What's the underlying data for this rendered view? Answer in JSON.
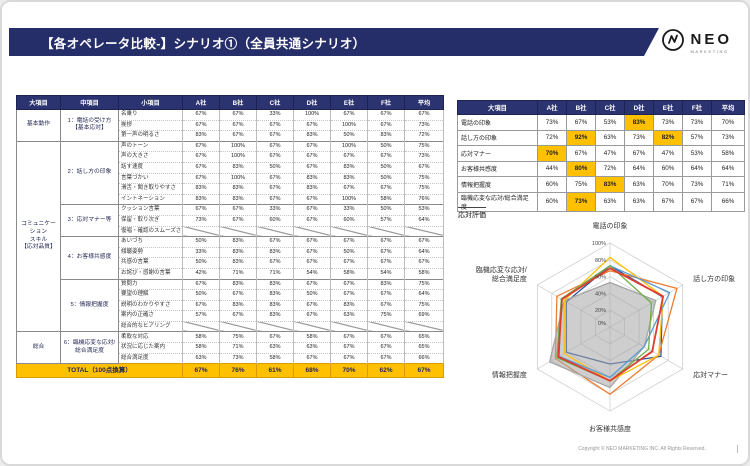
{
  "header": {
    "title": "【各オペレータ比較-】シナリオ①（全員共通シナリオ）"
  },
  "logo": {
    "name": "NEO",
    "sub": "MARKETING",
    "icon": "compass-circle-icon"
  },
  "left_table": {
    "col_headers": [
      "大項目",
      "中項目",
      "小項目",
      "A社",
      "B社",
      "C社",
      "D社",
      "E社",
      "F社",
      "平均"
    ],
    "majors": [
      {
        "label": "基本動作",
        "from": 0,
        "to": 0
      },
      {
        "label": "コミュニケーション\nスキル\n【応対品質】",
        "from": 1,
        "to": 4
      },
      {
        "label": "総合",
        "from": 5,
        "to": 5
      }
    ],
    "groups": [
      {
        "mid": "1：電話の受け方\n【基本応対】",
        "items": [
          {
            "label": "名乗り",
            "values": [
              "67%",
              "67%",
              "33%",
              "100%",
              "67%",
              "67%",
              "67%"
            ]
          },
          {
            "label": "挨拶",
            "values": [
              "67%",
              "67%",
              "67%",
              "67%",
              "100%",
              "67%",
              "73%"
            ]
          },
          {
            "label": "第一声の明るさ",
            "values": [
              "83%",
              "67%",
              "67%",
              "83%",
              "50%",
              "83%",
              "72%"
            ]
          }
        ]
      },
      {
        "mid": "2：話し方の印象",
        "items": [
          {
            "label": "声のトーン",
            "values": [
              "67%",
              "100%",
              "67%",
              "67%",
              "100%",
              "50%",
              "75%"
            ]
          },
          {
            "label": "声の大きさ",
            "values": [
              "67%",
              "100%",
              "67%",
              "67%",
              "67%",
              "67%",
              "73%"
            ]
          },
          {
            "label": "話す速度",
            "values": [
              "67%",
              "83%",
              "50%",
              "67%",
              "83%",
              "50%",
              "67%"
            ]
          },
          {
            "label": "言葉づかい",
            "values": [
              "67%",
              "100%",
              "67%",
              "83%",
              "83%",
              "50%",
              "75%"
            ]
          },
          {
            "label": "滑舌・聞き取りやすさ",
            "values": [
              "83%",
              "83%",
              "67%",
              "83%",
              "67%",
              "67%",
              "75%"
            ]
          },
          {
            "label": "イントネーション",
            "values": [
              "83%",
              "83%",
              "67%",
              "67%",
              "100%",
              "58%",
              "76%"
            ]
          }
        ]
      },
      {
        "mid": "3：応対マナー等",
        "items": [
          {
            "label": "クッション言葉",
            "values": [
              "67%",
              "67%",
              "33%",
              "67%",
              "33%",
              "50%",
              "53%"
            ]
          },
          {
            "label": "保留・取り次ぎ",
            "values": [
              "73%",
              "67%",
              "60%",
              "67%",
              "60%",
              "57%",
              "64%"
            ]
          },
          {
            "label": "復唱・確認のスムーズさ",
            "na": true,
            "values": null
          }
        ]
      },
      {
        "mid": "4：お客様共感度",
        "items": [
          {
            "label": "あいづち",
            "values": [
              "50%",
              "83%",
              "67%",
              "67%",
              "67%",
              "67%",
              "67%"
            ]
          },
          {
            "label": "傾聴姿勢",
            "values": [
              "33%",
              "83%",
              "83%",
              "67%",
              "50%",
              "67%",
              "64%"
            ]
          },
          {
            "label": "共感の言葉",
            "values": [
              "50%",
              "83%",
              "67%",
              "67%",
              "67%",
              "67%",
              "67%"
            ]
          },
          {
            "label": "お詫び・感謝の言葉",
            "values": [
              "42%",
              "71%",
              "71%",
              "54%",
              "58%",
              "54%",
              "58%"
            ]
          }
        ]
      },
      {
        "mid": "5：情報把握度",
        "items": [
          {
            "label": "質問力",
            "values": [
              "67%",
              "83%",
              "83%",
              "67%",
              "67%",
              "83%",
              "75%"
            ]
          },
          {
            "label": "要望の理解",
            "values": [
              "50%",
              "67%",
              "83%",
              "50%",
              "67%",
              "67%",
              "64%"
            ]
          },
          {
            "label": "説明のわかりやすさ",
            "values": [
              "67%",
              "83%",
              "83%",
              "67%",
              "83%",
              "67%",
              "75%"
            ]
          },
          {
            "label": "案内の正確さ",
            "values": [
              "57%",
              "67%",
              "83%",
              "67%",
              "63%",
              "75%",
              "69%"
            ]
          },
          {
            "label": "総合的なヒアリング",
            "na": true,
            "values": null
          }
        ]
      },
      {
        "mid": "6：臨機応変な応対/\n総合満足度",
        "items": [
          {
            "label": "柔軟な対応",
            "values": [
              "58%",
              "75%",
              "67%",
              "58%",
              "67%",
              "67%",
              "65%"
            ]
          },
          {
            "label": "状況に応じた案内",
            "values": [
              "58%",
              "71%",
              "63%",
              "63%",
              "67%",
              "67%",
              "65%"
            ]
          },
          {
            "label": "総合満足度",
            "values": [
              "63%",
              "73%",
              "58%",
              "67%",
              "67%",
              "67%",
              "66%"
            ]
          }
        ]
      }
    ],
    "total": {
      "label": "TOTAL（100点換算）",
      "values": [
        "67%",
        "76%",
        "61%",
        "68%",
        "70%",
        "62%",
        "67%"
      ]
    }
  },
  "summary_table": {
    "col_headers": [
      "大項目",
      "A社",
      "B社",
      "C社",
      "D社",
      "E社",
      "F社",
      "平均"
    ],
    "rows": [
      {
        "label": "電話の印象",
        "values": [
          "73%",
          "67%",
          "53%",
          "83%",
          "73%",
          "73%",
          "70%"
        ],
        "highlight": [
          3
        ]
      },
      {
        "label": "話し方の印象",
        "values": [
          "72%",
          "92%",
          "63%",
          "73%",
          "82%",
          "57%",
          "73%"
        ],
        "highlight": [
          1,
          4
        ]
      },
      {
        "label": "応対マナー",
        "values": [
          "70%",
          "67%",
          "47%",
          "67%",
          "47%",
          "53%",
          "58%"
        ],
        "highlight": [
          0
        ]
      },
      {
        "label": "お客様共感度",
        "values": [
          "44%",
          "80%",
          "72%",
          "64%",
          "60%",
          "64%",
          "64%"
        ],
        "highlight": [
          1
        ]
      },
      {
        "label": "情報把握度",
        "values": [
          "60%",
          "75%",
          "83%",
          "63%",
          "70%",
          "73%",
          "71%"
        ],
        "highlight": [
          2
        ]
      },
      {
        "label": "臨機応変な応対/総合満足度",
        "values": [
          "60%",
          "73%",
          "63%",
          "63%",
          "67%",
          "67%",
          "66%"
        ],
        "highlight": [
          1
        ]
      }
    ]
  },
  "legend_label": "応対評価",
  "chart_data": {
    "type": "radar",
    "title": "応対評価",
    "axes": [
      "電話の印象",
      "話し方の印象",
      "応対マナー",
      "お客様共感度",
      "情報把握度",
      "臨機応変な応対/\n総合満足度"
    ],
    "tick_labels": [
      "0%",
      "20%",
      "40%",
      "60%",
      "80%",
      "100%"
    ],
    "rmax": 100,
    "grid": true,
    "series": [
      {
        "name": "A社",
        "color": "#2E5596",
        "fill": false,
        "values": [
          73,
          72,
          70,
          44,
          60,
          60
        ]
      },
      {
        "name": "B社",
        "color": "#ED7D31",
        "fill": false,
        "values": [
          67,
          92,
          67,
          80,
          75,
          73
        ]
      },
      {
        "name": "C社",
        "color": "#A6A6A6",
        "fill": true,
        "values": [
          53,
          63,
          47,
          72,
          83,
          63
        ]
      },
      {
        "name": "D社",
        "color": "#FFC000",
        "fill": false,
        "values": [
          83,
          73,
          67,
          64,
          63,
          63
        ]
      },
      {
        "name": "E社",
        "color": "#5B9BD5",
        "fill": false,
        "values": [
          73,
          82,
          47,
          60,
          70,
          67
        ]
      },
      {
        "name": "F社",
        "color": "#70AD47",
        "fill": false,
        "values": [
          73,
          57,
          53,
          64,
          73,
          67
        ]
      },
      {
        "name": "平均",
        "color": "#E03C31",
        "fill": false,
        "values": [
          70,
          73,
          58,
          64,
          71,
          66
        ]
      }
    ]
  },
  "footer": "Copyright © NEO MARKETING INC. All Rights Reserved."
}
